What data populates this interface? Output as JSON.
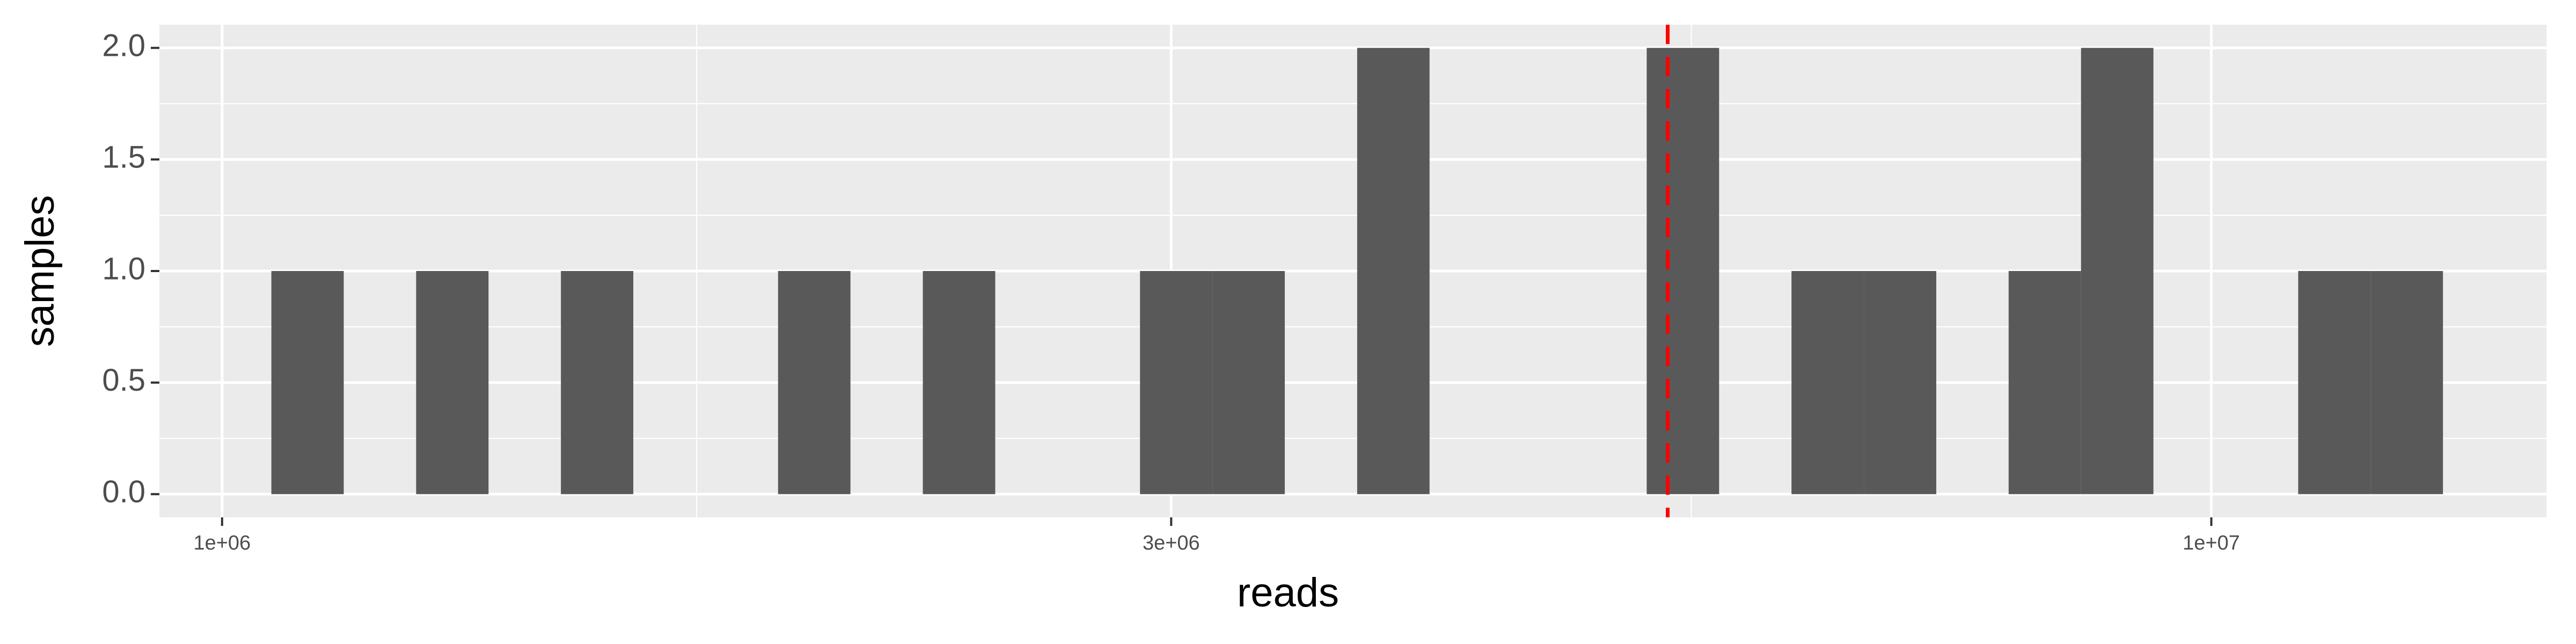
{
  "chart_data": {
    "type": "histogram",
    "xlabel": "reads",
    "ylabel": "samples",
    "bins": [
      1058700,
      1151230,
      1251850,
      1361260,
      1480240,
      1609610,
      1750290,
      1903270,
      2069620,
      2250500,
      2447200,
      2661090,
      2893670,
      3146580,
      3421590,
      3720640,
      4045830,
      4399430,
      4783940,
      5202060,
      5656720,
      6151120,
      6688730,
      7273330,
      7909020,
      8600270,
      9351930,
      10169290,
      11058090,
      12024560,
      13075510
    ],
    "counts": [
      1,
      0,
      1,
      0,
      1,
      0,
      0,
      1,
      0,
      1,
      0,
      0,
      1,
      1,
      0,
      2,
      0,
      0,
      0,
      2,
      0,
      1,
      1,
      0,
      1,
      2,
      0,
      0,
      1,
      1
    ],
    "color": "#595959",
    "xscale": "log",
    "xlim": [
      930000,
      14740000
    ],
    "xticks": [
      {
        "value": 1000000,
        "label": "1e+06"
      },
      {
        "value": 3000000,
        "label": "3e+06"
      },
      {
        "value": 10000000,
        "label": "1e+07"
      }
    ],
    "ylim": [
      -0.104,
      2.104
    ],
    "yticks": [
      {
        "value": 0,
        "label": "0.0"
      },
      0.5,
      {
        "value": 1,
        "label": "1.0"
      },
      1.5,
      {
        "value": 2,
        "label": "2.0"
      }
    ],
    "grid": true,
    "vline": 5330000,
    "vline_color": "#ff0000"
  }
}
